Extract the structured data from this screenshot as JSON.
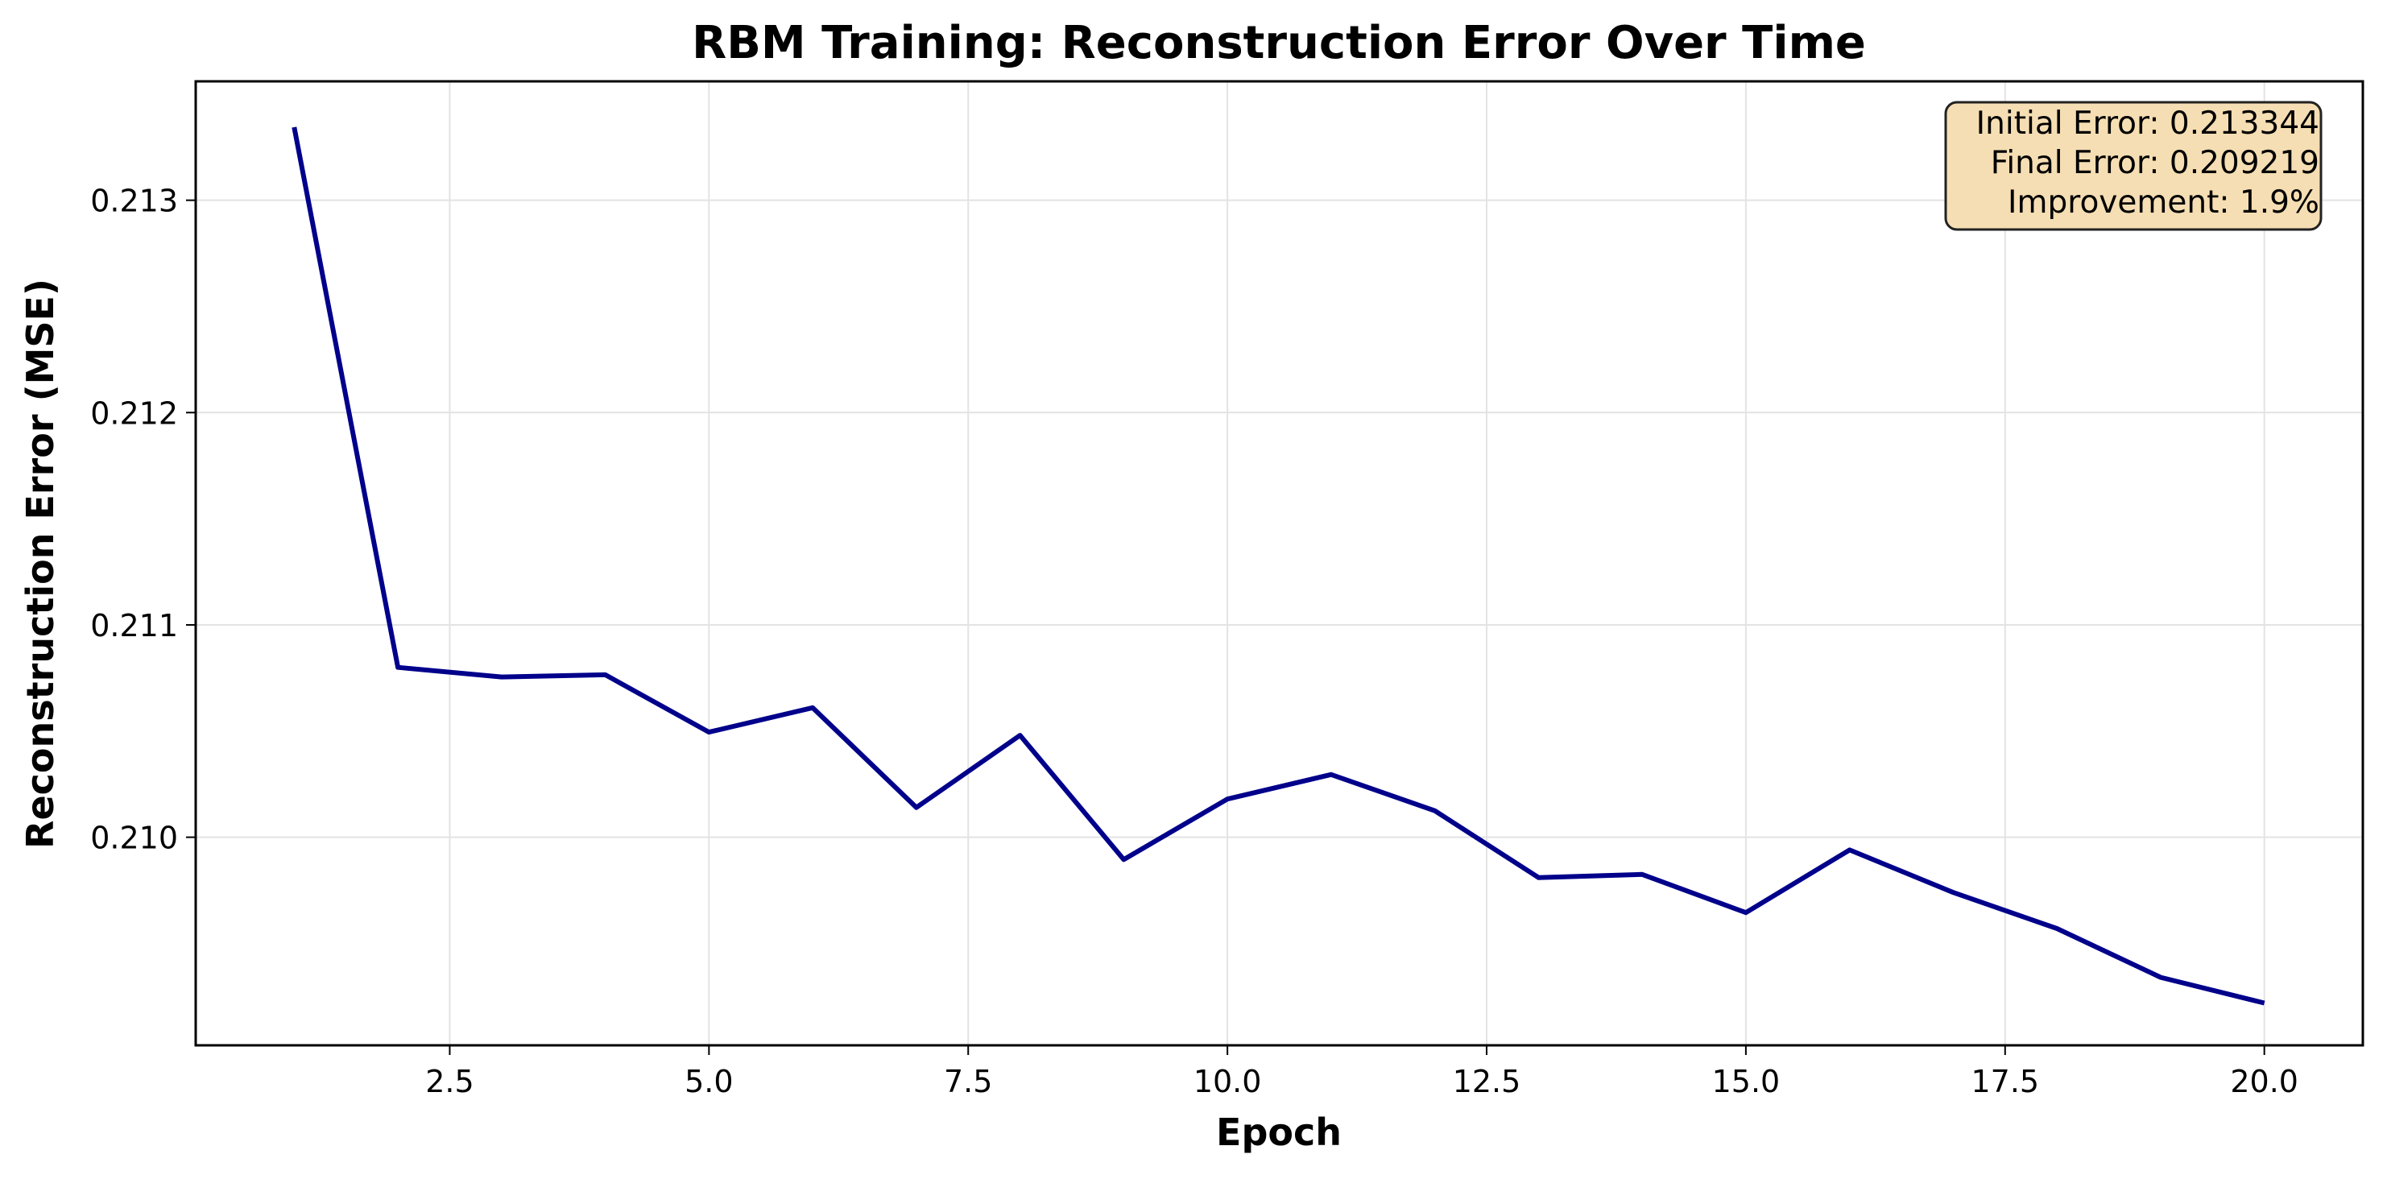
{
  "chart_data": {
    "type": "line",
    "title": "RBM Training: Reconstruction Error Over Time",
    "xlabel": "Epoch",
    "ylabel": "Reconstruction Error (MSE)",
    "xlim": [
      0.05,
      20.95
    ],
    "ylim": [
      0.20902,
      0.21356
    ],
    "xticks": [
      2.5,
      5.0,
      7.5,
      10.0,
      12.5,
      15.0,
      17.5,
      20.0
    ],
    "xtick_labels": [
      "2.5",
      "5.0",
      "7.5",
      "10.0",
      "12.5",
      "15.0",
      "17.5",
      "20.0"
    ],
    "yticks": [
      0.21,
      0.211,
      0.212,
      0.213
    ],
    "ytick_labels": [
      "0.210",
      "0.211",
      "0.212",
      "0.213"
    ],
    "grid": true,
    "series": [
      {
        "color": "#00008b",
        "x": [
          1,
          2,
          3,
          4,
          5,
          6,
          7,
          8,
          9,
          10,
          11,
          12,
          13,
          14,
          15,
          16,
          17,
          18,
          19,
          20
        ],
        "y": [
          0.213344,
          0.2108,
          0.210755,
          0.210765,
          0.210495,
          0.21061,
          0.21014,
          0.21048,
          0.209895,
          0.21018,
          0.210295,
          0.210125,
          0.20981,
          0.209825,
          0.209645,
          0.20994,
          0.20974,
          0.20957,
          0.20934,
          0.209219
        ]
      }
    ],
    "annotation": {
      "lines": [
        "Initial Error: 0.213344",
        "Final Error: 0.209219",
        "Improvement: 1.9%"
      ],
      "position": "top-right",
      "facecolor": "#f5deb3"
    }
  }
}
